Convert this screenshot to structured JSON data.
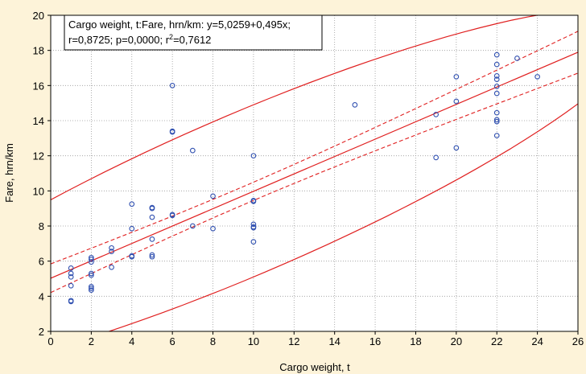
{
  "colors": {
    "background": "#fdf3d9",
    "plot_background": "#ffffff",
    "point_stroke": "#3050b0",
    "fit_line": "#e02020",
    "grid": "#9a9a9a"
  },
  "legend": {
    "line1": "Cargo weight, t:Fare, hrn/km: y=5,0259+0,495x;",
    "line2_a": "r=0,8725; p=0,0000; r",
    "line2_sup": "2",
    "line2_b": "=0,7612"
  },
  "chart_data": {
    "type": "scatter",
    "xlabel": "Cargo weight, t",
    "ylabel": "Fare, hrn/km",
    "xlim": [
      0,
      26
    ],
    "ylim": [
      2,
      20
    ],
    "xticks": [
      "0",
      "2",
      "4",
      "6",
      "8",
      "10",
      "12",
      "14",
      "16",
      "18",
      "20",
      "22",
      "24",
      "26"
    ],
    "yticks": [
      "2",
      "4",
      "6",
      "8",
      "10",
      "12",
      "14",
      "16",
      "18",
      "20"
    ],
    "grid": true,
    "legend_position": "top-left",
    "fit": {
      "intercept": 5.0259,
      "slope": 0.495
    },
    "confidence_band": "dashed",
    "prediction_ellipse": true,
    "points": [
      [
        1,
        5.6
      ],
      [
        1,
        5.3
      ],
      [
        1,
        5.1
      ],
      [
        1,
        4.6
      ],
      [
        1,
        3.75
      ],
      [
        1,
        3.7
      ],
      [
        2,
        6.2
      ],
      [
        2,
        6.1
      ],
      [
        2,
        5.95
      ],
      [
        2,
        5.3
      ],
      [
        2,
        5.2
      ],
      [
        2,
        4.55
      ],
      [
        2,
        4.45
      ],
      [
        2,
        4.35
      ],
      [
        3,
        6.75
      ],
      [
        3,
        6.55
      ],
      [
        3,
        5.65
      ],
      [
        4,
        9.25
      ],
      [
        4,
        7.85
      ],
      [
        4,
        6.3
      ],
      [
        4,
        6.25
      ],
      [
        5,
        9.05
      ],
      [
        5,
        9.0
      ],
      [
        5,
        8.5
      ],
      [
        5,
        7.25
      ],
      [
        5,
        6.35
      ],
      [
        5,
        6.25
      ],
      [
        6,
        16.0
      ],
      [
        6,
        13.4
      ],
      [
        6,
        13.35
      ],
      [
        6,
        8.65
      ],
      [
        6,
        8.6
      ],
      [
        7,
        12.3
      ],
      [
        7,
        8.0
      ],
      [
        8,
        9.7
      ],
      [
        8,
        7.85
      ],
      [
        10,
        12.0
      ],
      [
        10,
        9.45
      ],
      [
        10,
        9.4
      ],
      [
        10,
        8.1
      ],
      [
        10,
        7.95
      ],
      [
        10,
        7.9
      ],
      [
        10,
        7.1
      ],
      [
        15,
        14.9
      ],
      [
        19,
        14.35
      ],
      [
        19,
        11.9
      ],
      [
        20,
        16.5
      ],
      [
        20,
        15.1
      ],
      [
        20,
        12.45
      ],
      [
        22,
        17.75
      ],
      [
        22,
        17.2
      ],
      [
        22,
        16.55
      ],
      [
        22,
        16.35
      ],
      [
        22,
        15.95
      ],
      [
        22,
        15.55
      ],
      [
        22,
        14.45
      ],
      [
        22,
        14.05
      ],
      [
        22,
        13.95
      ],
      [
        22,
        13.15
      ],
      [
        23,
        17.55
      ],
      [
        24,
        16.5
      ]
    ]
  }
}
